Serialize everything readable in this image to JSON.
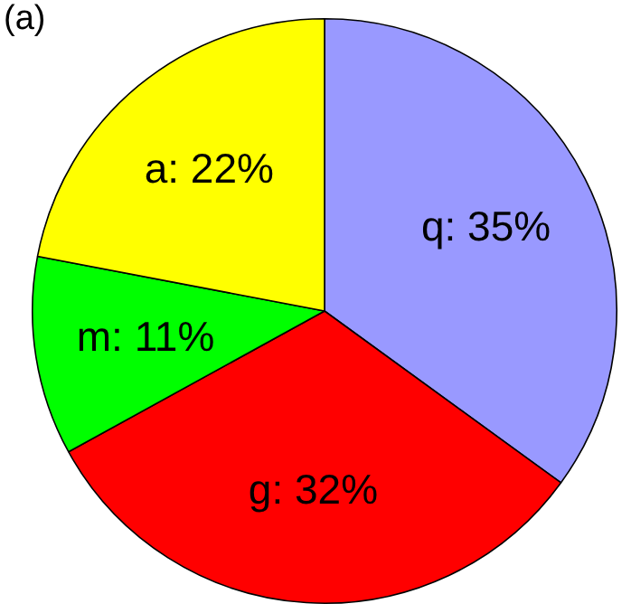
{
  "chart_data": {
    "type": "pie",
    "title": "(a)",
    "categories": [
      "q",
      "g",
      "m",
      "a"
    ],
    "values": [
      35,
      32,
      11,
      22
    ],
    "colors": [
      "#9999ff",
      "#ff0000",
      "#00ff00",
      "#ffff00"
    ],
    "value_labels": [
      "35%",
      "32%",
      "11%",
      "22%"
    ],
    "legend": false
  }
}
